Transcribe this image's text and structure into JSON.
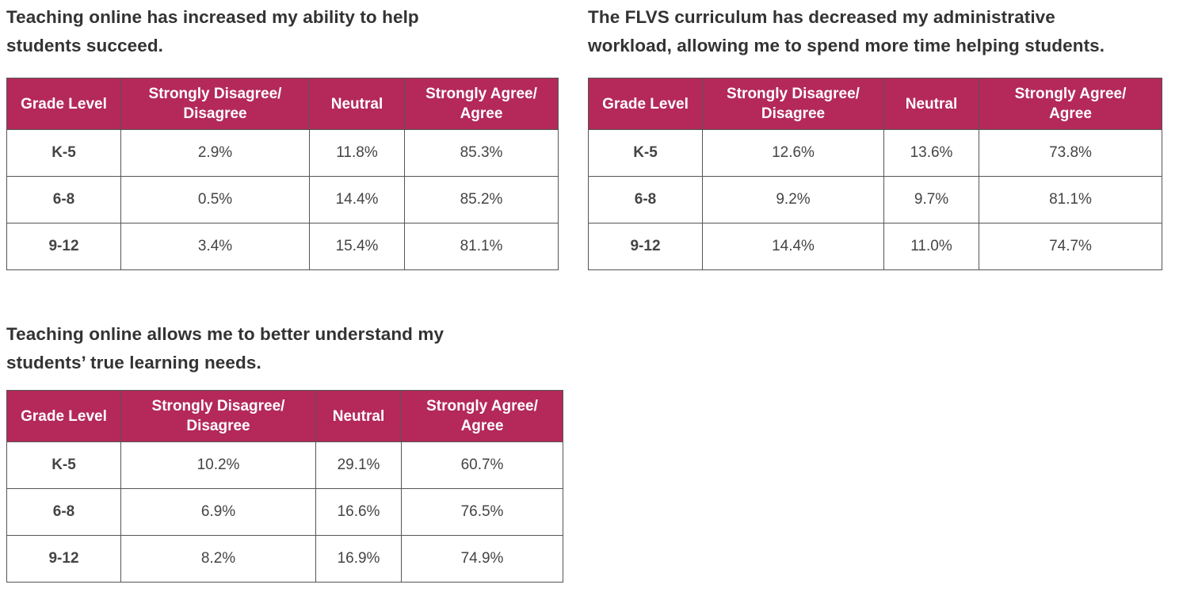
{
  "tables": [
    {
      "title_line1": "Teaching online has increased my ability to help",
      "title_line2": "students succeed.",
      "headers": [
        "Grade Level",
        "Strongly Disagree/",
        "Disagree",
        "Neutral",
        "Strongly Agree/",
        "Agree"
      ],
      "rows": [
        {
          "grade": "K-5",
          "disagree": "2.9%",
          "neutral": "11.8%",
          "agree": "85.3%"
        },
        {
          "grade": "6-8",
          "disagree": "0.5%",
          "neutral": "14.4%",
          "agree": "85.2%"
        },
        {
          "grade": "9-12",
          "disagree": "3.4%",
          "neutral": "15.4%",
          "agree": "81.1%"
        }
      ]
    },
    {
      "title_line1": "The FLVS curriculum has decreased my administrative",
      "title_line2": "workload, allowing me to spend more time helping students.",
      "headers": [
        "Grade Level",
        "Strongly Disagree/",
        "Disagree",
        "Neutral",
        "Strongly Agree/",
        "Agree"
      ],
      "rows": [
        {
          "grade": "K-5",
          "disagree": "12.6%",
          "neutral": "13.6%",
          "agree": "73.8%"
        },
        {
          "grade": "6-8",
          "disagree": "9.2%",
          "neutral": "9.7%",
          "agree": "81.1%"
        },
        {
          "grade": "9-12",
          "disagree": "14.4%",
          "neutral": "11.0%",
          "agree": "74.7%"
        }
      ]
    },
    {
      "title_line1": "Teaching online allows me to better understand my",
      "title_line2": "students’ true learning needs.",
      "headers": [
        "Grade Level",
        "Strongly Disagree/",
        "Disagree",
        "Neutral",
        "Strongly Agree/",
        "Agree"
      ],
      "rows": [
        {
          "grade": "K-5",
          "disagree": "10.2%",
          "neutral": "29.1%",
          "agree": "60.7%"
        },
        {
          "grade": "6-8",
          "disagree": "6.9%",
          "neutral": "16.6%",
          "agree": "76.5%"
        },
        {
          "grade": "9-12",
          "disagree": "8.2%",
          "neutral": "16.9%",
          "agree": "74.9%"
        }
      ]
    }
  ],
  "colors": {
    "header_bg": "#b4295a",
    "header_text": "#ffffff",
    "border": "#555555",
    "text": "#333333"
  }
}
